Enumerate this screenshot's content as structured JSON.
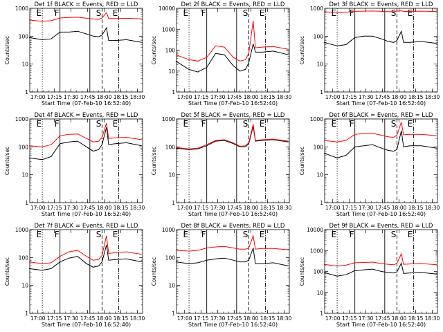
{
  "figure": {
    "xlabel": "Start Time (07-Feb-10 16:52:40)",
    "ylabel": "Counts/sec",
    "time_ticks": [
      "17:00",
      "17:15",
      "17:30",
      "17:45",
      "18:00",
      "18:15",
      "18:30"
    ],
    "line_labels": [
      "E",
      "F",
      "S",
      "E"
    ],
    "colors": {
      "events": "#000000",
      "lld": "#ff0000"
    }
  },
  "chart_data": [
    {
      "type": "line",
      "title": "Det 1f BLACK = Events, RED = LLD",
      "ylim": [
        1,
        1000
      ],
      "ylog": true,
      "yticks": [
        "1",
        "10",
        "100",
        "1000"
      ],
      "x": [
        "16:52",
        "17:04",
        "17:12",
        "17:20",
        "17:28",
        "17:36",
        "17:44",
        "17:50",
        "17:55",
        "17:58",
        "18:02",
        "18:04",
        "18:10",
        "18:20",
        "18:34"
      ],
      "series": [
        {
          "name": "Events",
          "values": [
            90,
            75,
            80,
            140,
            140,
            150,
            120,
            100,
            95,
            110,
            200,
            70,
            70,
            75,
            60
          ]
        },
        {
          "name": "LLD",
          "values": [
            380,
            340,
            360,
            450,
            470,
            480,
            440,
            420,
            400,
            450,
            700,
            430,
            430,
            440,
            420
          ]
        }
      ]
    },
    {
      "type": "line",
      "title": "Det 2f BLACK = Events, RED = LLD",
      "ylim": [
        1,
        10000
      ],
      "ylog": true,
      "yticks": [
        "1",
        "10",
        "100",
        "1000",
        "10000"
      ],
      "x": [
        "16:52",
        "17:04",
        "17:12",
        "17:20",
        "17:28",
        "17:36",
        "17:44",
        "17:50",
        "17:55",
        "17:58",
        "18:02",
        "18:04",
        "18:10",
        "18:20",
        "18:34"
      ],
      "series": [
        {
          "name": "Events",
          "values": [
            30,
            12,
            9,
            15,
            70,
            60,
            18,
            10,
            12,
            25,
            200,
            80,
            80,
            90,
            60
          ]
        },
        {
          "name": "LLD",
          "values": [
            60,
            35,
            30,
            45,
            160,
            140,
            45,
            30,
            35,
            70,
            2500,
            130,
            140,
            150,
            110
          ]
        }
      ]
    },
    {
      "type": "line",
      "title": "Det 3f BLACK = Events, RED = LLD",
      "ylim": [
        1,
        1000
      ],
      "ylog": true,
      "yticks": [
        "1",
        "10",
        "100",
        "1000"
      ],
      "x": [
        "16:52",
        "17:04",
        "17:12",
        "17:20",
        "17:28",
        "17:36",
        "17:44",
        "17:50",
        "17:55",
        "17:58",
        "18:02",
        "18:04",
        "18:10",
        "18:20",
        "18:34"
      ],
      "series": [
        {
          "name": "Events",
          "values": [
            60,
            45,
            50,
            90,
            100,
            100,
            80,
            65,
            60,
            70,
            150,
            60,
            60,
            65,
            55
          ]
        },
        {
          "name": "LLD",
          "values": [
            750,
            700,
            720,
            780,
            790,
            800,
            780,
            760,
            750,
            790,
            820,
            770,
            780,
            790,
            770
          ]
        }
      ]
    },
    {
      "type": "line",
      "title": "Det 4f BLACK = Events, RED = LLD",
      "ylim": [
        1,
        1000
      ],
      "ylog": true,
      "yticks": [
        "1",
        "10",
        "100",
        "1000"
      ],
      "x": [
        "16:52",
        "17:04",
        "17:12",
        "17:20",
        "17:28",
        "17:36",
        "17:44",
        "17:50",
        "17:55",
        "17:58",
        "18:02",
        "18:04",
        "18:10",
        "18:20",
        "18:34"
      ],
      "series": [
        {
          "name": "Events",
          "values": [
            40,
            35,
            45,
            130,
            150,
            160,
            100,
            70,
            80,
            120,
            500,
            120,
            130,
            140,
            110
          ]
        },
        {
          "name": "LLD",
          "values": [
            110,
            100,
            120,
            250,
            280,
            290,
            200,
            150,
            160,
            220,
            700,
            200,
            210,
            220,
            180
          ]
        }
      ]
    },
    {
      "type": "line",
      "title": "Det 5f BLACK = Events, RED = LLD",
      "ylim": [
        1,
        1000
      ],
      "ylog": true,
      "yticks": [
        "1",
        "10",
        "100",
        "1000"
      ],
      "x": [
        "16:52",
        "17:04",
        "17:12",
        "17:20",
        "17:28",
        "17:36",
        "17:44",
        "17:50",
        "17:55",
        "17:58",
        "18:02",
        "18:04",
        "18:10",
        "18:20",
        "18:34"
      ],
      "series": [
        {
          "name": "Events",
          "values": [
            90,
            80,
            85,
            110,
            160,
            170,
            130,
            100,
            100,
            130,
            550,
            160,
            170,
            180,
            150
          ]
        },
        {
          "name": "LLD",
          "values": [
            95,
            85,
            90,
            120,
            170,
            180,
            140,
            105,
            110,
            140,
            650,
            170,
            180,
            190,
            160
          ]
        }
      ]
    },
    {
      "type": "line",
      "title": "Det 6f BLACK = Events, RED = LLD",
      "ylim": [
        1,
        1000
      ],
      "ylog": true,
      "yticks": [
        "1",
        "10",
        "100",
        "1000"
      ],
      "x": [
        "16:52",
        "17:04",
        "17:12",
        "17:20",
        "17:28",
        "17:36",
        "17:44",
        "17:50",
        "17:55",
        "17:58",
        "18:02",
        "18:04",
        "18:10",
        "18:20",
        "18:34"
      ],
      "series": [
        {
          "name": "Events",
          "values": [
            60,
            40,
            50,
            100,
            110,
            120,
            90,
            75,
            70,
            80,
            380,
            100,
            110,
            110,
            90
          ]
        },
        {
          "name": "LLD",
          "values": [
            170,
            150,
            170,
            280,
            300,
            310,
            260,
            230,
            220,
            260,
            780,
            270,
            280,
            280,
            250
          ]
        }
      ]
    },
    {
      "type": "line",
      "title": "Det 7f BLACK = Events, RED = LLD",
      "ylim": [
        1,
        1000
      ],
      "ylog": true,
      "yticks": [
        "1",
        "10",
        "100",
        "1000"
      ],
      "x": [
        "16:52",
        "17:04",
        "17:12",
        "17:20",
        "17:28",
        "17:36",
        "17:44",
        "17:50",
        "17:55",
        "17:58",
        "18:02",
        "18:04",
        "18:10",
        "18:20",
        "18:34"
      ],
      "series": [
        {
          "name": "Events",
          "values": [
            40,
            35,
            40,
            70,
            95,
            110,
            60,
            45,
            50,
            70,
            280,
            80,
            85,
            90,
            70
          ]
        },
        {
          "name": "LLD",
          "values": [
            70,
            60,
            65,
            110,
            160,
            180,
            110,
            80,
            85,
            120,
            600,
            140,
            150,
            160,
            130
          ]
        }
      ]
    },
    {
      "type": "line",
      "title": "Det 8f BLACK = Events, RED = LLD",
      "ylim": [
        1,
        1000
      ],
      "ylog": true,
      "yticks": [
        "1",
        "10",
        "100",
        "1000"
      ],
      "x": [
        "16:52",
        "17:04",
        "17:12",
        "17:20",
        "17:28",
        "17:36",
        "17:44",
        "17:50",
        "17:55",
        "17:58",
        "18:02",
        "18:04",
        "18:10",
        "18:20",
        "18:34"
      ],
      "series": [
        {
          "name": "Events",
          "values": [
            70,
            60,
            65,
            80,
            90,
            95,
            80,
            70,
            70,
            80,
            220,
            60,
            60,
            65,
            50
          ]
        },
        {
          "name": "LLD",
          "values": [
            180,
            170,
            180,
            220,
            240,
            250,
            220,
            200,
            200,
            220,
            600,
            200,
            210,
            210,
            190
          ]
        }
      ]
    },
    {
      "type": "line",
      "title": "Det 9f BLACK = Events, RED = LLD",
      "ylim": [
        1,
        10000
      ],
      "ylog": true,
      "yticks": [
        "1",
        "10",
        "100",
        "1000",
        "10000"
      ],
      "x": [
        "16:52",
        "17:04",
        "17:12",
        "17:20",
        "17:28",
        "17:36",
        "17:44",
        "17:50",
        "17:55",
        "17:58",
        "18:02",
        "18:04",
        "18:10",
        "18:20",
        "18:34"
      ],
      "series": [
        {
          "name": "Events",
          "values": [
            90,
            60,
            70,
            110,
            120,
            130,
            100,
            90,
            85,
            95,
            250,
            80,
            85,
            90,
            75
          ]
        },
        {
          "name": "LLD",
          "values": [
            220,
            180,
            200,
            260,
            270,
            280,
            240,
            220,
            210,
            240,
            700,
            220,
            230,
            240,
            210
          ]
        }
      ]
    }
  ]
}
